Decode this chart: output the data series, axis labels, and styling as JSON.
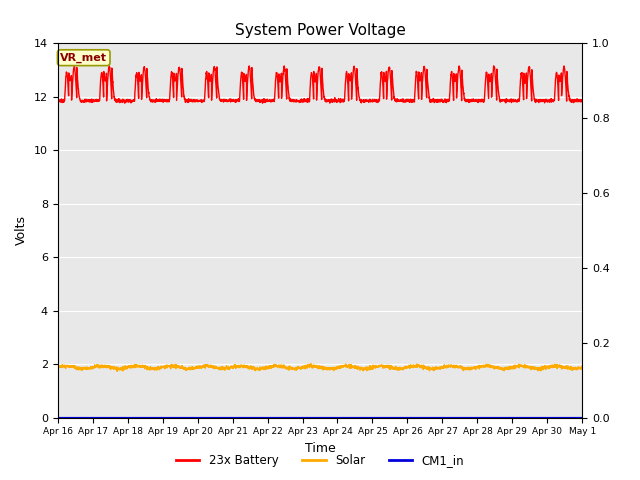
{
  "title": "System Power Voltage",
  "xlabel": "Time",
  "ylabel": "Volts",
  "xlim_days": 15,
  "ylim_left": [
    0,
    14
  ],
  "ylim_right": [
    0.0,
    1.0
  ],
  "background_color": "#e8e8e8",
  "fig_background": "#ffffff",
  "annotation_text": "VR_met",
  "annotation_box_color": "#ffffcc",
  "annotation_box_edgecolor": "#999900",
  "xtick_labels": [
    "Apr 16",
    "Apr 17",
    "Apr 18",
    "Apr 19",
    "Apr 20",
    "Apr 21",
    "Apr 22",
    "Apr 23",
    "Apr 24",
    "Apr 25",
    "Apr 26",
    "Apr 27",
    "Apr 28",
    "Apr 29",
    "Apr 30",
    "May 1"
  ],
  "yticks_left": [
    0,
    2,
    4,
    6,
    8,
    10,
    12,
    14
  ],
  "yticks_right": [
    0.0,
    0.2,
    0.4,
    0.6,
    0.8,
    1.0
  ],
  "series": {
    "battery": {
      "label": "23x Battery",
      "color": "#ff0000",
      "linewidth": 1.0
    },
    "solar": {
      "label": "Solar",
      "color": "#ffaa00",
      "linewidth": 1.0
    },
    "cm1_in": {
      "label": "CM1_in",
      "color": "#0000dd",
      "linewidth": 1.0
    }
  },
  "n_days": 15,
  "battery_base": 11.85,
  "battery_peak1": 12.9,
  "battery_peak2": 13.1,
  "solar_base": 1.88,
  "cm1_base": 0.0
}
